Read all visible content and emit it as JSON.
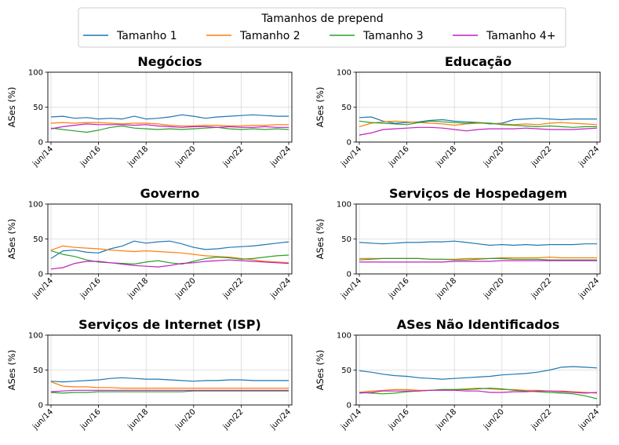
{
  "legend": {
    "title": "Tamanhos de prepend",
    "entries": [
      {
        "label": "Tamanho 1",
        "color": "#1f77b4"
      },
      {
        "label": "Tamanho 2",
        "color": "#ff7f0e"
      },
      {
        "label": "Tamanho 3",
        "color": "#2ca02c"
      },
      {
        "label": "Tamanho 4+",
        "color": "#c020c0"
      }
    ]
  },
  "chart_data": [
    {
      "type": "line",
      "title": "Negócios",
      "xlabel": "",
      "ylabel": "ASes (%)",
      "ylim": [
        0,
        100
      ],
      "yticks": [
        0,
        50,
        100
      ],
      "xticks": [
        "jun/14",
        "jun/16",
        "jun/18",
        "jun/20",
        "jun/22",
        "jun/24"
      ],
      "x": [
        "jun/14",
        "dez/14",
        "jun/15",
        "dez/15",
        "jun/16",
        "dez/16",
        "jun/17",
        "dez/17",
        "jun/18",
        "dez/18",
        "jun/19",
        "dez/19",
        "jun/20",
        "dez/20",
        "jun/21",
        "dez/21",
        "jun/22",
        "dez/22",
        "jun/23",
        "dez/23",
        "jun/24"
      ],
      "grid": true,
      "series": [
        {
          "name": "Tamanho 1",
          "values": [
            36,
            37,
            34,
            35,
            33,
            34,
            33,
            37,
            33,
            34,
            36,
            39,
            37,
            34,
            36,
            37,
            38,
            39,
            38,
            37,
            37
          ]
        },
        {
          "name": "Tamanho 2",
          "values": [
            27,
            28,
            27,
            28,
            28,
            27,
            26,
            27,
            27,
            26,
            24,
            23,
            23,
            24,
            24,
            23,
            23,
            24,
            24,
            25,
            25
          ]
        },
        {
          "name": "Tamanho 3",
          "values": [
            20,
            18,
            16,
            14,
            17,
            21,
            23,
            20,
            19,
            18,
            19,
            18,
            19,
            20,
            21,
            19,
            18,
            19,
            18,
            19,
            18
          ]
        },
        {
          "name": "Tamanho 4+",
          "values": [
            19,
            22,
            24,
            26,
            25,
            25,
            25,
            24,
            25,
            23,
            22,
            21,
            22,
            22,
            21,
            22,
            21,
            21,
            22,
            21,
            21
          ]
        }
      ]
    },
    {
      "type": "line",
      "title": "Educação",
      "xlabel": "",
      "ylabel": "ASes (%)",
      "ylim": [
        0,
        100
      ],
      "yticks": [
        0,
        50,
        100
      ],
      "xticks": [
        "jun/14",
        "jun/16",
        "jun/18",
        "jun/20",
        "jun/22",
        "jun/24"
      ],
      "x": [
        "jun/14",
        "dez/14",
        "jun/15",
        "dez/15",
        "jun/16",
        "dez/16",
        "jun/17",
        "dez/17",
        "jun/18",
        "dez/18",
        "jun/19",
        "dez/19",
        "jun/20",
        "dez/20",
        "jun/21",
        "dez/21",
        "jun/22",
        "dez/22",
        "jun/23",
        "dez/23",
        "jun/24"
      ],
      "grid": true,
      "series": [
        {
          "name": "Tamanho 1",
          "values": [
            35,
            36,
            30,
            27,
            28,
            29,
            31,
            32,
            30,
            29,
            28,
            26,
            27,
            32,
            33,
            34,
            33,
            32,
            33,
            33,
            33
          ]
        },
        {
          "name": "Tamanho 2",
          "values": [
            22,
            27,
            29,
            30,
            29,
            28,
            27,
            26,
            24,
            26,
            27,
            27,
            26,
            25,
            26,
            25,
            27,
            28,
            27,
            26,
            25
          ]
        },
        {
          "name": "Tamanho 3",
          "values": [
            30,
            28,
            27,
            26,
            25,
            28,
            30,
            29,
            28,
            27,
            28,
            27,
            25,
            24,
            23,
            22,
            23,
            22,
            21,
            22,
            22
          ]
        },
        {
          "name": "Tamanho 4+",
          "values": [
            10,
            13,
            18,
            19,
            20,
            21,
            21,
            20,
            18,
            16,
            18,
            19,
            19,
            19,
            20,
            19,
            18,
            18,
            18,
            19,
            20
          ]
        }
      ]
    },
    {
      "type": "line",
      "title": "Governo",
      "xlabel": "",
      "ylabel": "ASes (%)",
      "ylim": [
        0,
        100
      ],
      "yticks": [
        0,
        50,
        100
      ],
      "xticks": [
        "jun/14",
        "jun/16",
        "jun/18",
        "jun/20",
        "jun/22",
        "jun/24"
      ],
      "x": [
        "jun/14",
        "dez/14",
        "jun/15",
        "dez/15",
        "jun/16",
        "dez/16",
        "jun/17",
        "dez/17",
        "jun/18",
        "dez/18",
        "jun/19",
        "dez/19",
        "jun/20",
        "dez/20",
        "jun/21",
        "dez/21",
        "jun/22",
        "dez/22",
        "jun/23",
        "dez/23",
        "jun/24"
      ],
      "grid": true,
      "series": [
        {
          "name": "Tamanho 1",
          "values": [
            22,
            33,
            34,
            31,
            30,
            36,
            40,
            47,
            44,
            46,
            47,
            43,
            38,
            35,
            36,
            38,
            39,
            40,
            42,
            44,
            46
          ]
        },
        {
          "name": "Tamanho 2",
          "values": [
            34,
            40,
            38,
            37,
            36,
            34,
            33,
            32,
            33,
            32,
            31,
            30,
            28,
            26,
            25,
            24,
            22,
            20,
            18,
            17,
            16
          ]
        },
        {
          "name": "Tamanho 3",
          "values": [
            33,
            28,
            25,
            20,
            17,
            16,
            15,
            14,
            17,
            19,
            16,
            14,
            18,
            22,
            24,
            23,
            21,
            22,
            24,
            26,
            27
          ]
        },
        {
          "name": "Tamanho 4+",
          "values": [
            7,
            9,
            15,
            18,
            18,
            16,
            14,
            12,
            11,
            10,
            12,
            15,
            16,
            18,
            19,
            20,
            19,
            18,
            17,
            16,
            15
          ]
        }
      ]
    },
    {
      "type": "line",
      "title": "Serviços de Hospedagem",
      "xlabel": "",
      "ylabel": "ASes (%)",
      "ylim": [
        0,
        100
      ],
      "yticks": [
        0,
        50,
        100
      ],
      "xticks": [
        "jun/14",
        "jun/16",
        "jun/18",
        "jun/20",
        "jun/22",
        "jun/24"
      ],
      "x": [
        "jun/14",
        "dez/14",
        "jun/15",
        "dez/15",
        "jun/16",
        "dez/16",
        "jun/17",
        "dez/17",
        "jun/18",
        "dez/18",
        "jun/19",
        "dez/19",
        "jun/20",
        "dez/20",
        "jun/21",
        "dez/21",
        "jun/22",
        "dez/22",
        "jun/23",
        "dez/23",
        "jun/24"
      ],
      "grid": true,
      "series": [
        {
          "name": "Tamanho 1",
          "values": [
            45,
            44,
            43,
            44,
            45,
            45,
            46,
            46,
            47,
            45,
            43,
            41,
            42,
            41,
            42,
            41,
            42,
            42,
            42,
            43,
            43
          ]
        },
        {
          "name": "Tamanho 2",
          "values": [
            22,
            22,
            22,
            22,
            22,
            22,
            21,
            21,
            21,
            22,
            22,
            22,
            23,
            23,
            23,
            23,
            24,
            23,
            23,
            23,
            23
          ]
        },
        {
          "name": "Tamanho 3",
          "values": [
            20,
            21,
            22,
            22,
            22,
            22,
            21,
            21,
            20,
            20,
            21,
            22,
            22,
            21,
            21,
            21,
            20,
            20,
            20,
            20,
            20
          ]
        },
        {
          "name": "Tamanho 4+",
          "values": [
            17,
            17,
            17,
            17,
            17,
            17,
            17,
            17,
            18,
            18,
            18,
            18,
            19,
            19,
            19,
            19,
            19,
            19,
            19,
            19,
            19
          ]
        }
      ]
    },
    {
      "type": "line",
      "title": "Serviços de Internet (ISP)",
      "xlabel": "",
      "ylabel": "ASes (%)",
      "ylim": [
        0,
        100
      ],
      "yticks": [
        0,
        50,
        100
      ],
      "xticks": [
        "jun/14",
        "jun/16",
        "jun/18",
        "jun/20",
        "jun/22",
        "jun/24"
      ],
      "x": [
        "jun/14",
        "dez/14",
        "jun/15",
        "dez/15",
        "jun/16",
        "dez/16",
        "jun/17",
        "dez/17",
        "jun/18",
        "dez/18",
        "jun/19",
        "dez/19",
        "jun/20",
        "dez/20",
        "jun/21",
        "dez/21",
        "jun/22",
        "dez/22",
        "jun/23",
        "dez/23",
        "jun/24"
      ],
      "grid": true,
      "series": [
        {
          "name": "Tamanho 1",
          "values": [
            34,
            33,
            34,
            35,
            36,
            38,
            39,
            38,
            37,
            37,
            36,
            35,
            34,
            35,
            35,
            36,
            36,
            35,
            35,
            35,
            35
          ]
        },
        {
          "name": "Tamanho 2",
          "values": [
            33,
            27,
            26,
            26,
            25,
            25,
            24,
            24,
            24,
            24,
            24,
            24,
            24,
            24,
            24,
            24,
            24,
            24,
            24,
            24,
            24
          ]
        },
        {
          "name": "Tamanho 3",
          "values": [
            18,
            17,
            18,
            18,
            19,
            19,
            19,
            19,
            19,
            19,
            19,
            19,
            20,
            20,
            20,
            20,
            20,
            20,
            20,
            20,
            20
          ]
        },
        {
          "name": "Tamanho 4+",
          "values": [
            19,
            20,
            21,
            21,
            21,
            21,
            21,
            21,
            21,
            21,
            21,
            21,
            21,
            21,
            21,
            21,
            21,
            21,
            21,
            21,
            21
          ]
        }
      ]
    },
    {
      "type": "line",
      "title": "ASes Não Identificados",
      "xlabel": "",
      "ylabel": "ASes (%)",
      "ylim": [
        0,
        100
      ],
      "yticks": [
        0,
        50,
        100
      ],
      "xticks": [
        "jun/14",
        "jun/16",
        "jun/18",
        "jun/20",
        "jun/22",
        "jun/24"
      ],
      "x": [
        "jun/14",
        "dez/14",
        "jun/15",
        "dez/15",
        "jun/16",
        "dez/16",
        "jun/17",
        "dez/17",
        "jun/18",
        "dez/18",
        "jun/19",
        "dez/19",
        "jun/20",
        "dez/20",
        "jun/21",
        "dez/21",
        "jun/22",
        "dez/22",
        "jun/23",
        "dez/23",
        "jun/24"
      ],
      "grid": true,
      "series": [
        {
          "name": "Tamanho 1",
          "values": [
            49,
            47,
            44,
            42,
            41,
            39,
            38,
            37,
            38,
            39,
            40,
            41,
            43,
            44,
            45,
            47,
            50,
            54,
            55,
            54,
            53
          ]
        },
        {
          "name": "Tamanho 2",
          "values": [
            18,
            20,
            21,
            22,
            22,
            21,
            21,
            22,
            22,
            23,
            24,
            23,
            22,
            22,
            21,
            21,
            20,
            20,
            19,
            18,
            17
          ]
        },
        {
          "name": "Tamanho 3",
          "values": [
            18,
            17,
            16,
            17,
            19,
            20,
            21,
            22,
            22,
            22,
            23,
            24,
            23,
            21,
            20,
            19,
            18,
            17,
            16,
            13,
            9
          ]
        },
        {
          "name": "Tamanho 4+",
          "values": [
            17,
            18,
            20,
            20,
            20,
            20,
            21,
            21,
            21,
            20,
            20,
            18,
            18,
            19,
            19,
            20,
            20,
            19,
            18,
            17,
            18
          ]
        }
      ]
    }
  ]
}
